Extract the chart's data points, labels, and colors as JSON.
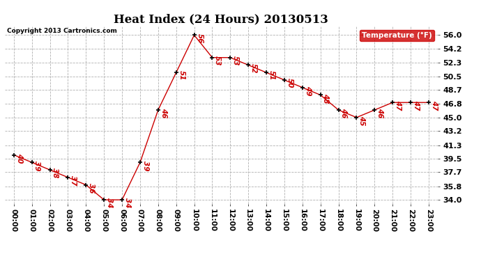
{
  "title": "Heat Index (24 Hours) 20130513",
  "copyright": "Copyright 2013 Cartronics.com",
  "legend_label": "Temperature (°F)",
  "hours": [
    "00:00",
    "01:00",
    "02:00",
    "03:00",
    "04:00",
    "05:00",
    "06:00",
    "07:00",
    "08:00",
    "09:00",
    "10:00",
    "11:00",
    "12:00",
    "13:00",
    "14:00",
    "15:00",
    "16:00",
    "17:00",
    "18:00",
    "19:00",
    "20:00",
    "21:00",
    "22:00",
    "23:00"
  ],
  "values": [
    40,
    39,
    38,
    37,
    36,
    34,
    34,
    39,
    46,
    51,
    56,
    53,
    53,
    52,
    51,
    50,
    49,
    48,
    46,
    45,
    46,
    47,
    47,
    47
  ],
  "line_color": "#cc0000",
  "marker_color": "#000000",
  "label_color": "#cc0000",
  "background_color": "#ffffff",
  "grid_color": "#b0b0b0",
  "yticks": [
    34.0,
    35.8,
    37.7,
    39.5,
    41.3,
    43.2,
    45.0,
    46.8,
    48.7,
    50.5,
    52.3,
    54.2,
    56.0
  ],
  "ylim": [
    33.5,
    57.2
  ],
  "title_fontsize": 12,
  "legend_box_color": "#cc0000",
  "legend_text_color": "#ffffff"
}
